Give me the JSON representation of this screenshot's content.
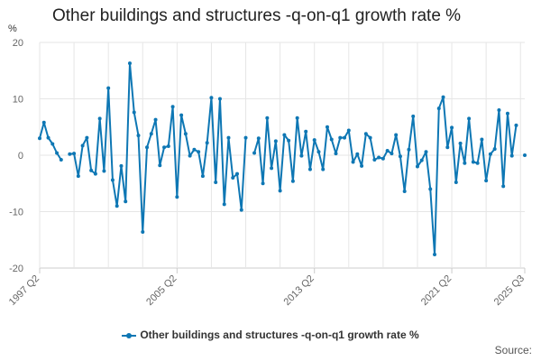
{
  "chart_data": {
    "type": "line",
    "title": "Other buildings and structures -q-on-q1 growth rate %",
    "ylabel": "%",
    "xlabel": "",
    "ylim": [
      -20,
      20
    ],
    "yticks": [
      20,
      10,
      0,
      -10,
      -20
    ],
    "xtick_labels": [
      "1997 Q2",
      "2005 Q2",
      "2013 Q2",
      "2021 Q2",
      "2025 Q3"
    ],
    "x": [
      "1997 Q2",
      "1997 Q3",
      "1997 Q4",
      "1998 Q1",
      "1998 Q2",
      "1998 Q3",
      "1998 Q4",
      "1999 Q1",
      "1999 Q2",
      "1999 Q3",
      "1999 Q4",
      "2000 Q1",
      "2000 Q2",
      "2000 Q3",
      "2000 Q4",
      "2001 Q1",
      "2001 Q2",
      "2001 Q3",
      "2001 Q4",
      "2002 Q1",
      "2002 Q2",
      "2002 Q3",
      "2002 Q4",
      "2003 Q1",
      "2003 Q2",
      "2003 Q3",
      "2003 Q4",
      "2004 Q1",
      "2004 Q2",
      "2004 Q3",
      "2004 Q4",
      "2005 Q1",
      "2005 Q2",
      "2005 Q3",
      "2005 Q4",
      "2006 Q1",
      "2006 Q2",
      "2006 Q3",
      "2006 Q4",
      "2007 Q1",
      "2007 Q2",
      "2007 Q3",
      "2007 Q4",
      "2008 Q1",
      "2008 Q2",
      "2008 Q3",
      "2008 Q4",
      "2009 Q1",
      "2009 Q2",
      "2009 Q3",
      "2009 Q4",
      "2010 Q1",
      "2010 Q2",
      "2010 Q3",
      "2010 Q4",
      "2011 Q1",
      "2011 Q2",
      "2011 Q3",
      "2011 Q4",
      "2012 Q1",
      "2012 Q2",
      "2012 Q3",
      "2012 Q4",
      "2013 Q1",
      "2013 Q2",
      "2013 Q3",
      "2013 Q4",
      "2014 Q1",
      "2014 Q2",
      "2014 Q3",
      "2014 Q4",
      "2015 Q1",
      "2015 Q2",
      "2015 Q3",
      "2015 Q4",
      "2016 Q1",
      "2016 Q2",
      "2016 Q3",
      "2016 Q4",
      "2017 Q1",
      "2017 Q2",
      "2017 Q3",
      "2017 Q4",
      "2018 Q1",
      "2018 Q2",
      "2018 Q3",
      "2018 Q4",
      "2019 Q1",
      "2019 Q2",
      "2019 Q3",
      "2019 Q4",
      "2020 Q1",
      "2020 Q2",
      "2020 Q3",
      "2020 Q4",
      "2021 Q1",
      "2021 Q2",
      "2021 Q3",
      "2021 Q4",
      "2022 Q1",
      "2022 Q2",
      "2022 Q3",
      "2022 Q4",
      "2023 Q1",
      "2023 Q2",
      "2023 Q3",
      "2023 Q4",
      "2024 Q1",
      "2024 Q2",
      "2024 Q3",
      "2024 Q4",
      "2025 Q1",
      "2025 Q2",
      "2025 Q3"
    ],
    "series": [
      {
        "name": "Other buildings and structures -q-on-q1 growth rate %",
        "color": "#0e77b4",
        "values": [
          3.0,
          5.8,
          3.1,
          2.0,
          0.4,
          -0.8,
          null,
          0.2,
          0.3,
          -3.7,
          1.7,
          3.1,
          -2.7,
          -3.3,
          6.5,
          -2.8,
          11.9,
          -4.4,
          -9.0,
          -1.9,
          -8.2,
          16.3,
          7.6,
          3.5,
          -13.6,
          1.4,
          3.8,
          6.3,
          -1.8,
          1.4,
          1.6,
          8.6,
          -7.4,
          7.1,
          3.8,
          -0.1,
          1.0,
          0.6,
          -3.7,
          2.2,
          10.2,
          -4.8,
          10.0,
          -8.7,
          3.1,
          -4.0,
          -3.3,
          -9.7,
          3.1,
          null,
          0.4,
          3.0,
          -5.0,
          6.6,
          -2.3,
          2.5,
          -6.3,
          3.6,
          2.6,
          -4.6,
          6.6,
          -0.1,
          4.2,
          -2.5,
          2.7,
          0.6,
          -2.5,
          5.0,
          2.8,
          0.3,
          3.1,
          3.1,
          4.4,
          -1.2,
          0.2,
          -1.9,
          3.8,
          3.1,
          -0.8,
          -0.4,
          -0.6,
          0.8,
          0.3,
          3.6,
          -0.2,
          -6.4,
          1.0,
          6.9,
          -2.0,
          -0.9,
          0.6,
          -6.0,
          -17.6,
          8.3,
          10.3,
          1.4,
          4.9,
          -4.8,
          2.1,
          -1.4,
          6.5,
          -1.2,
          -1.4,
          2.8,
          -4.5,
          0.2,
          1.1,
          8.0,
          -5.5,
          7.4,
          -0.1,
          5.3,
          null,
          0.0
        ]
      }
    ],
    "legend": "Other buildings and structures -q-on-q1 growth rate %",
    "legend_position": "bottom-center",
    "grid": true,
    "source_label": "Source:"
  }
}
